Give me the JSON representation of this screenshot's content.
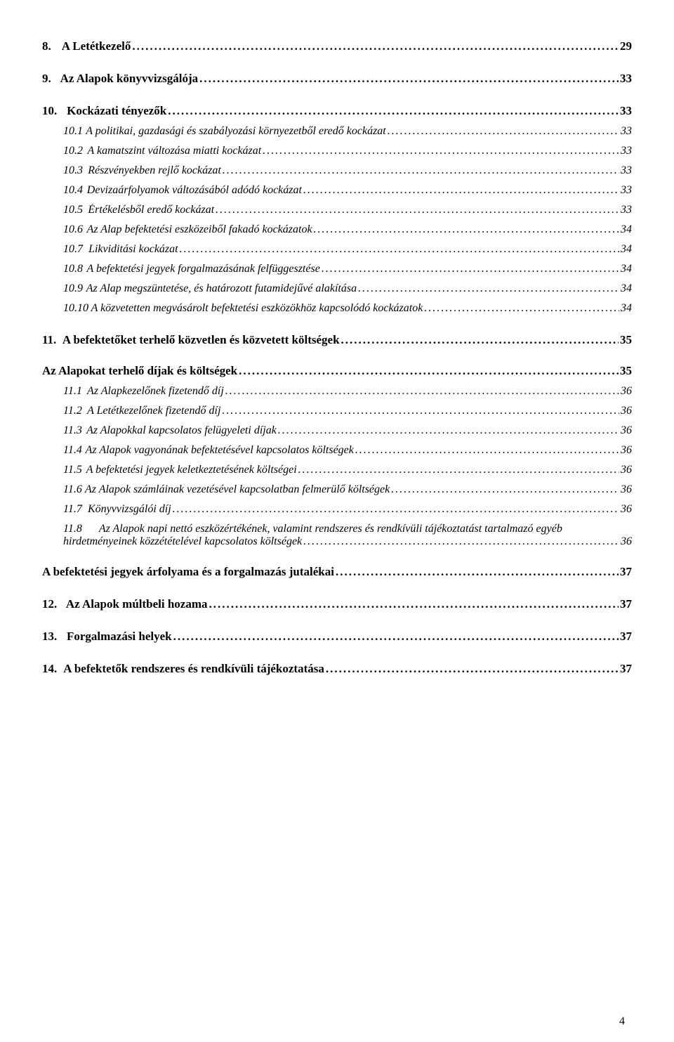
{
  "colors": {
    "text": "#000000",
    "background": "#ffffff"
  },
  "typography": {
    "font_family": "Times New Roman",
    "main_fontsize_pt": 13,
    "sub_fontsize_pt": 12,
    "main_weight": "bold",
    "sub_style": "italic"
  },
  "page_number": "4",
  "entries": [
    {
      "kind": "main",
      "num": "8.",
      "text": "A Letétkezelő",
      "page": "29"
    },
    {
      "kind": "main",
      "num": "9.",
      "text": "Az Alapok könyvvizsgálója",
      "page": "33"
    },
    {
      "kind": "main",
      "num": "10.",
      "text": "Kockázati tényezők",
      "page": "33"
    },
    {
      "kind": "sub",
      "num": "10.1",
      "text": "A politikai, gazdasági és szabályozási környezetből eredő kockázat",
      "page": "33"
    },
    {
      "kind": "sub",
      "num": "10.2",
      "text": "A kamatszint változása miatti kockázat",
      "page": "33"
    },
    {
      "kind": "sub",
      "num": "10.3",
      "text": "Részvényekben rejlő kockázat",
      "page": "33"
    },
    {
      "kind": "sub",
      "num": "10.4",
      "text": "Devizaárfolyamok változásából adódó kockázat",
      "page": "33"
    },
    {
      "kind": "sub",
      "num": "10.5",
      "text": "Értékelésből eredő kockázat",
      "page": "33"
    },
    {
      "kind": "sub",
      "num": "10.6",
      "text": "Az Alap befektetési eszközeiből fakadó kockázatok",
      "page": "34"
    },
    {
      "kind": "sub",
      "num": "10.7",
      "text": "Likviditási kockázat",
      "page": "34"
    },
    {
      "kind": "sub",
      "num": "10.8",
      "text": "A befektetési jegyek forgalmazásának felfüggesztése",
      "page": "34"
    },
    {
      "kind": "sub",
      "num": "10.9",
      "text": "Az Alap megszüntetése, és határozott futamidejűvé alakítása",
      "page": "34"
    },
    {
      "kind": "sub",
      "num": "10.10",
      "text": "A közvetetten megvásárolt befektetési eszközökhöz kapcsolódó kockázatok",
      "page": "34"
    },
    {
      "kind": "main",
      "num": "11.",
      "text": "A befektetőket terhelő közvetlen és közvetett költségek",
      "page": "35"
    },
    {
      "kind": "standalone",
      "text": "Az Alapokat terhelő díjak és költségek",
      "page": "35"
    },
    {
      "kind": "sub",
      "num": "11.1",
      "text": "Az Alapkezelőnek fizetendő díj",
      "page": "36"
    },
    {
      "kind": "sub",
      "num": "11.2",
      "text": "A Letétkezelőnek fizetendő díj",
      "page": "36"
    },
    {
      "kind": "sub",
      "num": "11.3",
      "text": "Az Alapokkal kapcsolatos felügyeleti díjak",
      "page": "36"
    },
    {
      "kind": "sub",
      "num": "11.4",
      "text": "Az Alapok vagyonának befektetésével kapcsolatos költségek",
      "page": "36"
    },
    {
      "kind": "sub",
      "num": "11.5",
      "text": "A befektetési jegyek keletkeztetésének költségei",
      "page": "36"
    },
    {
      "kind": "sub",
      "num": "11.6",
      "text": "Az Alapok számláinak vezetésével kapcsolatban felmerülő költségek",
      "page": "36"
    },
    {
      "kind": "sub",
      "num": "11.7",
      "text": "Könyvvizsgálói díj",
      "page": "36"
    },
    {
      "kind": "sub_multiline",
      "num": "11.8",
      "line1": "Az Alapok napi nettó eszközértékének, valamint rendszeres és rendkívüli tájékoztatást tartalmazó egyéb",
      "line2": "hirdetményeinek közzétételével kapcsolatos költségek",
      "page": "36"
    },
    {
      "kind": "standalone",
      "text": "A befektetési jegyek árfolyama és a forgalmazás jutalékai",
      "page": "37"
    },
    {
      "kind": "main",
      "num": "12.",
      "text": "Az Alapok múltbeli hozama",
      "page": "37"
    },
    {
      "kind": "main",
      "num": "13.",
      "text": "Forgalmazási helyek",
      "page": "37"
    },
    {
      "kind": "main",
      "num": "14.",
      "text": "A befektetők rendszeres és rendkívüli tájékoztatása",
      "page": "37"
    }
  ]
}
